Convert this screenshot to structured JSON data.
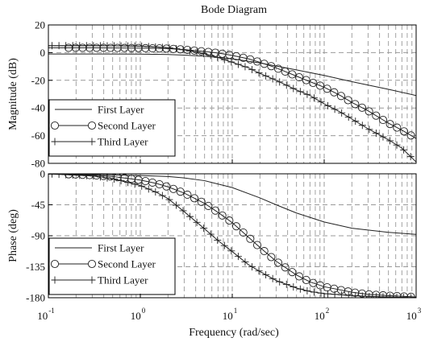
{
  "chart_data": {
    "type": "line",
    "title": "Bode Diagram",
    "xlabel": "Frequency  (rad/sec)",
    "xscale": "log",
    "xlim": [
      0.1,
      1000
    ],
    "x_ticks": [
      {
        "base": "10",
        "exp": "-1"
      },
      {
        "base": "10",
        "exp": "0"
      },
      {
        "base": "10",
        "exp": "1"
      },
      {
        "base": "10",
        "exp": "2"
      },
      {
        "base": "10",
        "exp": "3"
      }
    ],
    "grid": true,
    "grid_style": "dashed",
    "panels": [
      {
        "id": "magnitude",
        "ylabel": "Magnitude (dB)",
        "ylim": [
          -80,
          20
        ],
        "yticks": [
          "20",
          "0",
          "-20",
          "-40",
          "-60",
          "-80"
        ],
        "legend_position": "lower-left",
        "series": [
          {
            "name": "First Layer",
            "marker": "none",
            "x": [
              0.1,
              0.3,
              1,
              2,
              3,
              5,
              10,
              20,
              50,
              100,
              200,
              500,
              1000
            ],
            "y": [
              -1,
              -1,
              -1.1,
              -1.4,
              -1.8,
              -2.6,
              -4.5,
              -7.5,
              -12.5,
              -16.5,
              -21,
              -26.5,
              -31
            ]
          },
          {
            "name": "Second Layer",
            "marker": "circle",
            "x": [
              0.1,
              0.3,
              1,
              2,
              3,
              5,
              7,
              10,
              15,
              20,
              30,
              50,
              70,
              100,
              150,
              200,
              300,
              500,
              700,
              1000
            ],
            "y": [
              3.5,
              3.5,
              3.3,
              2.9,
              2.2,
              0.8,
              -0.3,
              -2,
              -4.5,
              -7,
              -11,
              -17,
              -21,
              -25,
              -31,
              -36,
              -42,
              -51,
              -56,
              -62
            ]
          },
          {
            "name": "Third Layer",
            "marker": "plus",
            "x": [
              0.1,
              0.3,
              1,
              2,
              3,
              5,
              7,
              10,
              15,
              20,
              30,
              50,
              70,
              100,
              150,
              200,
              300,
              500,
              700,
              1000
            ],
            "y": [
              5,
              5,
              4.7,
              3.6,
              2,
              -0.8,
              -3.5,
              -7,
              -11,
              -15,
              -20,
              -27,
              -31,
              -37,
              -43,
              -48,
              -55,
              -63,
              -69,
              -79
            ]
          }
        ]
      },
      {
        "id": "phase",
        "ylabel": "Phase (deg)",
        "ylim": [
          -180,
          0
        ],
        "yticks": [
          "0",
          "-45",
          "-90",
          "-135",
          "-180"
        ],
        "legend_position": "lower-left",
        "series": [
          {
            "name": "First Layer",
            "marker": "none",
            "x": [
              0.1,
              0.3,
              1,
              2,
              3,
              5,
              10,
              20,
              30,
              50,
              100,
              200,
              500,
              1000
            ],
            "y": [
              -0.5,
              -1,
              -2.5,
              -4,
              -6,
              -10,
              -20,
              -35,
              -45,
              -57,
              -70,
              -79,
              -85,
              -88
            ]
          },
          {
            "name": "Second Layer",
            "marker": "circle",
            "x": [
              0.1,
              0.2,
              0.3,
              0.5,
              1,
              1.5,
              2,
              3,
              5,
              7,
              10,
              15,
              20,
              30,
              50,
              70,
              100,
              200,
              300,
              500,
              1000
            ],
            "y": [
              0,
              -1,
              -2,
              -4,
              -9,
              -14,
              -19,
              -28,
              -43,
              -56,
              -71,
              -92,
              -107,
              -127,
              -147,
              -157,
              -164,
              -172,
              -175,
              -177,
              -179
            ]
          },
          {
            "name": "Third Layer",
            "marker": "plus",
            "x": [
              0.1,
              0.2,
              0.3,
              0.5,
              1,
              1.5,
              2,
              3,
              5,
              7,
              10,
              15,
              20,
              30,
              50,
              70,
              100,
              200,
              300,
              500,
              1000
            ],
            "y": [
              0,
              -2,
              -3,
              -7,
              -17,
              -27,
              -36,
              -55,
              -80,
              -97,
              -113,
              -132,
              -142,
              -155,
              -166,
              -171,
              -174,
              -177,
              -178,
              -179,
              -180
            ]
          }
        ]
      }
    ]
  }
}
